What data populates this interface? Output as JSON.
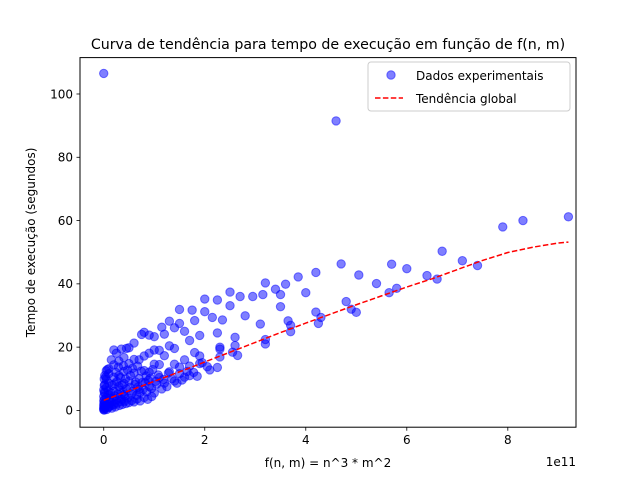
{
  "chart_data": {
    "type": "scatter",
    "title": "Curva de tendência para tempo de execução em função de f(n, m)",
    "xlabel": "f(n, m) = n^3 * m^2",
    "ylabel": "Tempo de execução (segundos)",
    "x_scale_label": "1e11",
    "xlim": [
      -0.47,
      9.35
    ],
    "ylim": [
      -5.3,
      111.5
    ],
    "x_ticks": [
      0,
      2,
      4,
      6,
      8
    ],
    "x_tick_labels": [
      "0",
      "2",
      "4",
      "6",
      "8"
    ],
    "y_ticks": [
      0,
      20,
      40,
      60,
      80,
      100
    ],
    "y_tick_labels": [
      "0",
      "20",
      "40",
      "60",
      "80",
      "100"
    ],
    "grid": false,
    "legend_position": "top-right",
    "legend": [
      {
        "label": "Dados experimentais",
        "kind": "marker"
      },
      {
        "label": "Tendência global",
        "kind": "line"
      }
    ],
    "colors": {
      "points": "#0000ff",
      "trend": "#ff0000"
    },
    "series": [
      {
        "name": "Dados experimentais",
        "kind": "scatter",
        "points": [
          [
            0.0,
            106.5
          ],
          [
            4.6,
            91.5
          ],
          [
            9.2,
            61.2
          ],
          [
            8.3,
            60.0
          ],
          [
            7.9,
            58.0
          ],
          [
            7.4,
            45.8
          ],
          [
            7.1,
            47.3
          ],
          [
            6.7,
            50.3
          ],
          [
            6.6,
            41.5
          ],
          [
            6.4,
            42.6
          ],
          [
            6.0,
            44.8
          ],
          [
            5.8,
            38.6
          ],
          [
            5.7,
            46.2
          ],
          [
            5.65,
            37.2
          ],
          [
            5.4,
            40.1
          ],
          [
            5.05,
            42.8
          ],
          [
            5.0,
            31.0
          ],
          [
            4.9,
            32.0
          ],
          [
            4.8,
            34.4
          ],
          [
            4.7,
            46.3
          ],
          [
            4.3,
            29.4
          ],
          [
            4.25,
            27.5
          ],
          [
            4.2,
            31.1
          ],
          [
            4.2,
            43.6
          ],
          [
            4.0,
            37.2
          ],
          [
            3.85,
            42.2
          ],
          [
            3.7,
            26.9
          ],
          [
            3.7,
            24.9
          ],
          [
            3.65,
            28.3
          ],
          [
            3.6,
            39.9
          ],
          [
            3.5,
            32.8
          ],
          [
            3.5,
            36.6
          ],
          [
            3.4,
            38.3
          ],
          [
            3.2,
            40.3
          ],
          [
            3.2,
            22.4
          ],
          [
            3.2,
            21.0
          ],
          [
            3.15,
            36.6
          ],
          [
            3.1,
            27.3
          ],
          [
            2.95,
            36.0
          ],
          [
            2.8,
            29.9
          ],
          [
            2.7,
            36.0
          ],
          [
            2.65,
            17.4
          ],
          [
            2.6,
            20.5
          ],
          [
            2.6,
            23.1
          ],
          [
            2.55,
            18.4
          ],
          [
            2.5,
            33.1
          ],
          [
            2.5,
            37.4
          ],
          [
            2.35,
            28.6
          ],
          [
            2.25,
            34.9
          ],
          [
            2.25,
            24.5
          ],
          [
            2.3,
            20.0
          ],
          [
            2.3,
            19.4
          ],
          [
            2.3,
            16.9
          ],
          [
            2.25,
            13.6
          ],
          [
            2.15,
            29.4
          ],
          [
            2.1,
            12.8
          ],
          [
            2.0,
            35.2
          ],
          [
            2.0,
            31.2
          ],
          [
            1.9,
            23.7
          ],
          [
            1.9,
            17.2
          ],
          [
            1.9,
            14.8
          ],
          [
            1.8,
            28.4
          ],
          [
            1.8,
            18.3
          ],
          [
            1.75,
            31.7
          ],
          [
            1.7,
            22.1
          ],
          [
            1.7,
            11.0
          ],
          [
            1.6,
            25.0
          ],
          [
            1.6,
            16.0
          ],
          [
            1.6,
            10.5
          ],
          [
            1.5,
            31.9
          ],
          [
            1.5,
            27.5
          ],
          [
            1.5,
            13.7
          ],
          [
            1.4,
            26.1
          ],
          [
            1.4,
            19.6
          ],
          [
            1.4,
            14.6
          ],
          [
            1.4,
            9.3
          ],
          [
            1.3,
            28.2
          ],
          [
            1.3,
            20.4
          ],
          [
            1.3,
            12.2
          ],
          [
            1.2,
            24.1
          ],
          [
            1.2,
            17.3
          ],
          [
            1.2,
            8.6
          ],
          [
            1.15,
            26.3
          ],
          [
            1.1,
            19.0
          ],
          [
            1.1,
            14.5
          ],
          [
            1.1,
            10.4
          ],
          [
            1.0,
            23.3
          ],
          [
            1.0,
            19.1
          ],
          [
            1.0,
            14.6
          ],
          [
            0.9,
            23.8
          ],
          [
            0.9,
            18.1
          ],
          [
            0.9,
            12.1
          ],
          [
            0.9,
            7.6
          ],
          [
            0.8,
            24.7
          ],
          [
            0.8,
            17.2
          ],
          [
            0.8,
            12.6
          ],
          [
            0.75,
            24.0
          ],
          [
            0.7,
            16.0
          ],
          [
            0.7,
            10.1
          ],
          [
            0.7,
            6.6
          ],
          [
            0.6,
            21.3
          ],
          [
            0.6,
            16.1
          ],
          [
            0.6,
            11.8
          ],
          [
            0.5,
            19.8
          ],
          [
            0.5,
            14.8
          ],
          [
            0.5,
            9.3
          ],
          [
            0.45,
            19.6
          ],
          [
            0.4,
            16.7
          ],
          [
            0.4,
            12.3
          ],
          [
            0.4,
            8.5
          ],
          [
            0.4,
            5.0
          ],
          [
            0.35,
            19.4
          ],
          [
            0.3,
            15.6
          ],
          [
            0.3,
            11.0
          ],
          [
            0.3,
            7.6
          ],
          [
            0.25,
            18.1
          ],
          [
            0.2,
            19.1
          ],
          [
            0.2,
            14.4
          ],
          [
            0.2,
            10.5
          ],
          [
            0.2,
            6.0
          ],
          [
            0.15,
            16.0
          ],
          [
            0.1,
            13.2
          ],
          [
            0.1,
            11.6
          ],
          [
            0.1,
            8.6
          ],
          [
            0.1,
            5.0
          ],
          [
            0.05,
            12.5
          ],
          [
            0.05,
            9.8
          ],
          [
            0.05,
            7.2
          ],
          [
            0.05,
            4.1
          ],
          [
            0.02,
            11.0
          ],
          [
            0.02,
            8.1
          ],
          [
            0.02,
            5.5
          ],
          [
            0.02,
            2.5
          ],
          [
            0.0,
            6.5
          ],
          [
            0.0,
            4.4
          ],
          [
            0.0,
            3.0
          ],
          [
            0.0,
            1.8
          ],
          [
            0.0,
            1.0
          ],
          [
            0.0,
            0.5
          ],
          [
            0.0,
            0.2
          ],
          [
            0.03,
            0.8
          ],
          [
            0.05,
            1.5
          ],
          [
            0.08,
            2.1
          ],
          [
            0.1,
            1.2
          ],
          [
            0.12,
            3.2
          ],
          [
            0.15,
            2.6
          ],
          [
            0.18,
            3.8
          ],
          [
            0.2,
            2.0
          ],
          [
            0.22,
            4.6
          ],
          [
            0.25,
            3.3
          ],
          [
            0.28,
            5.2
          ],
          [
            0.3,
            4.0
          ],
          [
            0.32,
            6.4
          ],
          [
            0.35,
            3.5
          ],
          [
            0.38,
            5.8
          ],
          [
            0.42,
            4.5
          ],
          [
            0.45,
            6.8
          ],
          [
            0.48,
            3.9
          ],
          [
            0.52,
            7.3
          ],
          [
            0.55,
            5.2
          ],
          [
            0.58,
            6.1
          ],
          [
            0.62,
            8.2
          ],
          [
            0.65,
            4.8
          ],
          [
            0.68,
            7.4
          ],
          [
            0.72,
            5.6
          ],
          [
            0.78,
            6.7
          ],
          [
            0.82,
            8.8
          ],
          [
            0.85,
            5.9
          ],
          [
            0.88,
            9.5
          ],
          [
            0.95,
            7.0
          ],
          [
            1.0,
            5.5
          ],
          [
            1.05,
            8.3
          ],
          [
            1.08,
            11.2
          ],
          [
            1.15,
            6.8
          ],
          [
            1.18,
            9.8
          ],
          [
            1.25,
            7.5
          ],
          [
            1.28,
            11.8
          ],
          [
            1.35,
            10.0
          ],
          [
            1.45,
            8.6
          ],
          [
            1.5,
            11.6
          ],
          [
            1.55,
            9.6
          ],
          [
            1.65,
            12.3
          ],
          [
            1.7,
            14.0
          ],
          [
            1.78,
            12.0
          ],
          [
            1.85,
            10.8
          ],
          [
            1.95,
            15.1
          ],
          [
            2.05,
            13.8
          ],
          [
            0.06,
            0.3
          ],
          [
            0.09,
            0.9
          ],
          [
            0.13,
            1.4
          ],
          [
            0.16,
            0.7
          ],
          [
            0.19,
            1.7
          ],
          [
            0.23,
            1.1
          ],
          [
            0.27,
            2.3
          ],
          [
            0.31,
            1.6
          ],
          [
            0.34,
            2.8
          ],
          [
            0.37,
            1.9
          ],
          [
            0.41,
            2.9
          ],
          [
            0.44,
            2.2
          ],
          [
            0.5,
            2.5
          ],
          [
            0.55,
            3.1
          ],
          [
            0.6,
            2.7
          ],
          [
            0.66,
            3.6
          ],
          [
            0.72,
            3.0
          ],
          [
            0.8,
            4.1
          ],
          [
            0.87,
            3.5
          ],
          [
            0.95,
            4.4
          ],
          [
            0.01,
            0.1
          ],
          [
            0.01,
            0.6
          ],
          [
            0.01,
            1.4
          ],
          [
            0.01,
            2.2
          ],
          [
            0.01,
            3.4
          ],
          [
            0.01,
            5.8
          ],
          [
            0.01,
            7.9
          ],
          [
            0.01,
            9.9
          ],
          [
            0.04,
            10.6
          ],
          [
            0.07,
            12.9
          ],
          [
            0.09,
            6.2
          ],
          [
            0.11,
            3.9
          ],
          [
            0.14,
            5.6
          ],
          [
            0.17,
            7.9
          ],
          [
            0.21,
            8.4
          ],
          [
            0.24,
            12.0
          ],
          [
            0.26,
            9.1
          ],
          [
            0.29,
            13.7
          ],
          [
            0.33,
            10.4
          ],
          [
            0.36,
            8.0
          ],
          [
            0.39,
            14.1
          ],
          [
            0.43,
            10.0
          ],
          [
            0.47,
            12.8
          ],
          [
            0.53,
            11.0
          ],
          [
            0.57,
            13.3
          ],
          [
            0.63,
            9.0
          ],
          [
            0.67,
            14.0
          ],
          [
            0.74,
            12.4
          ],
          [
            0.76,
            8.8
          ],
          [
            0.84,
            10.9
          ],
          [
            0.92,
            10.2
          ],
          [
            0.97,
            12.9
          ],
          [
            1.03,
            9.2
          ]
        ]
      },
      {
        "name": "Tendência global",
        "kind": "line",
        "style": "dashed",
        "points": [
          [
            0.0,
            3.2
          ],
          [
            0.5,
            6.2
          ],
          [
            1.0,
            9.2
          ],
          [
            1.5,
            12.2
          ],
          [
            2.0,
            15.3
          ],
          [
            2.5,
            18.4
          ],
          [
            3.0,
            21.5
          ],
          [
            3.5,
            24.6
          ],
          [
            4.0,
            27.6
          ],
          [
            4.5,
            30.5
          ],
          [
            5.0,
            33.4
          ],
          [
            5.5,
            36.2
          ],
          [
            6.0,
            39.0
          ],
          [
            6.5,
            41.6
          ],
          [
            7.0,
            44.5
          ],
          [
            7.5,
            47.4
          ],
          [
            8.0,
            49.9
          ],
          [
            8.5,
            51.6
          ],
          [
            9.0,
            52.9
          ],
          [
            9.2,
            53.2
          ]
        ]
      }
    ]
  }
}
